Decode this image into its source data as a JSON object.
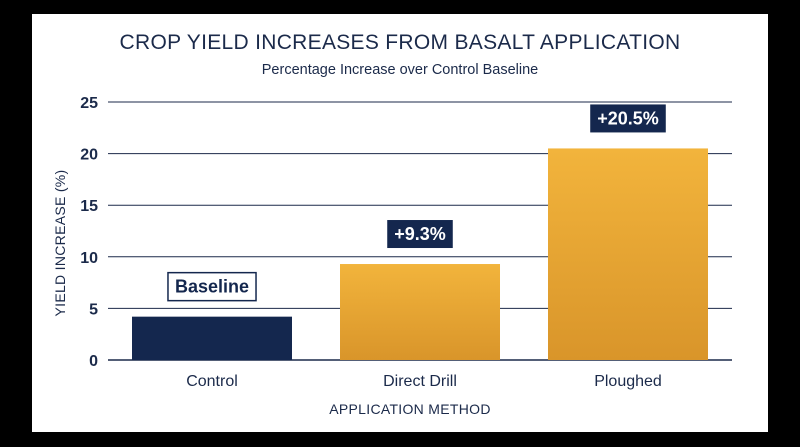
{
  "chart_data": {
    "type": "bar",
    "title": "CROP YIELD INCREASES FROM BASALT APPLICATION",
    "subtitle": "Percentage Increase over Control Baseline",
    "xlabel": "APPLICATION METHOD",
    "ylabel": "YIELD INCREASE (%)",
    "ylim": [
      0,
      25
    ],
    "yticks": [
      0,
      5,
      10,
      15,
      20,
      25
    ],
    "grid": true,
    "categories": [
      "Control",
      "Direct Drill",
      "Ploughed"
    ],
    "values": [
      4.2,
      9.3,
      20.5
    ],
    "data_labels": [
      "Baseline",
      "+9.3%",
      "+20.5%"
    ],
    "colors": {
      "control": "#14274e",
      "treatment": "#e8a532",
      "text": "#1b2a4a",
      "grid": "#1b2a4a"
    }
  }
}
